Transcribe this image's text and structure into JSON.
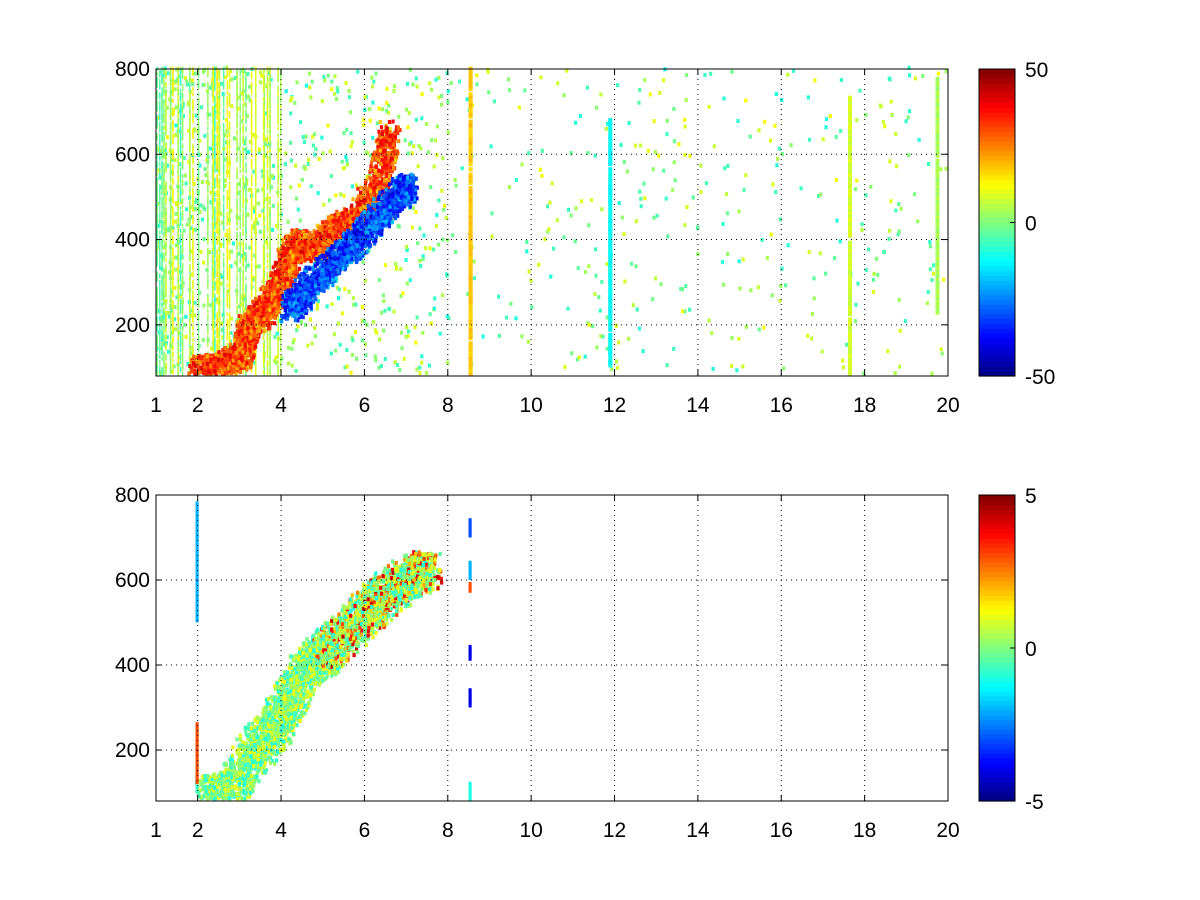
{
  "chart_data": [
    {
      "type": "heatmap",
      "title": "",
      "xlabel": "",
      "ylabel": "",
      "xlim": [
        1,
        20
      ],
      "ylim": [
        80,
        800
      ],
      "xticks": [
        1,
        2,
        4,
        6,
        8,
        10,
        12,
        14,
        16,
        18,
        20
      ],
      "yticks": [
        200,
        400,
        600,
        800
      ],
      "grid": true,
      "colormap": "jet",
      "colorbar": {
        "min": -50,
        "max": 50,
        "ticks": [
          50,
          0,
          -50
        ]
      },
      "ridge": {
        "description_values": "main diagonal feature (x, y) with sign of value",
        "positive_branch": [
          [
            2.0,
            90
          ],
          [
            2.5,
            100
          ],
          [
            3.0,
            120
          ],
          [
            3.2,
            190
          ],
          [
            3.6,
            230
          ],
          [
            4.0,
            300
          ],
          [
            4.3,
            390
          ],
          [
            4.8,
            370
          ],
          [
            5.3,
            420
          ],
          [
            5.8,
            450
          ],
          [
            6.3,
            520
          ],
          [
            6.6,
            650
          ]
        ],
        "negative_branch": [
          [
            4.2,
            230
          ],
          [
            4.6,
            280
          ],
          [
            5.2,
            340
          ],
          [
            5.8,
            390
          ],
          [
            6.3,
            450
          ],
          [
            6.8,
            500
          ],
          [
            7.0,
            520
          ]
        ]
      },
      "stripes": [
        {
          "x": 11.85,
          "value": -12,
          "ymin": 100,
          "ymax": 680
        },
        {
          "x": 17.6,
          "value": 8,
          "ymin": 80,
          "ymax": 730
        },
        {
          "x": 19.7,
          "value": 4,
          "ymin": 220,
          "ymax": 780
        },
        {
          "x": 8.5,
          "value": 18,
          "ymin": 80,
          "ymax": 800
        }
      ]
    },
    {
      "type": "heatmap",
      "title": "",
      "xlabel": "",
      "ylabel": "",
      "xlim": [
        1,
        20
      ],
      "ylim": [
        80,
        800
      ],
      "xticks": [
        1,
        2,
        4,
        6,
        8,
        10,
        12,
        14,
        16,
        18,
        20
      ],
      "yticks": [
        200,
        400,
        600,
        800
      ],
      "grid": true,
      "colormap": "jet",
      "colorbar": {
        "min": -5,
        "max": 5,
        "ticks": [
          5,
          0,
          -5
        ]
      },
      "ridge": {
        "points": [
          [
            2.2,
            85
          ],
          [
            2.8,
            100
          ],
          [
            3.3,
            190
          ],
          [
            3.8,
            240
          ],
          [
            4.2,
            320
          ],
          [
            4.6,
            390
          ],
          [
            5.0,
            420
          ],
          [
            5.5,
            470
          ],
          [
            6.0,
            520
          ],
          [
            6.5,
            560
          ],
          [
            7.0,
            600
          ],
          [
            7.5,
            620
          ]
        ]
      },
      "stripes": [
        {
          "x": 8.5,
          "segments": [
            [
              700,
              740,
              -3
            ],
            [
              600,
              640,
              -2
            ],
            [
              570,
              590,
              3
            ],
            [
              410,
              440,
              -4
            ],
            [
              300,
              340,
              -4
            ],
            [
              80,
              120,
              -1
            ]
          ]
        },
        {
          "x": 1.95,
          "segments": [
            [
              500,
              780,
              -2
            ],
            [
              120,
              260,
              3
            ]
          ]
        }
      ]
    }
  ]
}
